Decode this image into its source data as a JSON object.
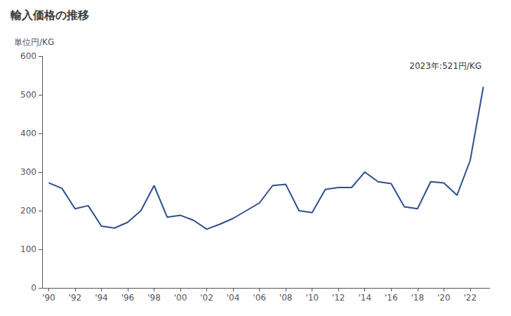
{
  "chart_data": {
    "type": "line",
    "title": "輸入価格の推移",
    "ylabel": "単位円/KG",
    "annotation": "2023年:521円/KG",
    "color": "#2e4e8f",
    "x": [
      1990,
      1991,
      1992,
      1993,
      1994,
      1995,
      1996,
      1997,
      1998,
      1999,
      2000,
      2001,
      2002,
      2003,
      2004,
      2005,
      2006,
      2007,
      2008,
      2009,
      2010,
      2011,
      2012,
      2013,
      2014,
      2015,
      2016,
      2017,
      2018,
      2019,
      2020,
      2021,
      2022,
      2023
    ],
    "values": [
      272,
      258,
      205,
      213,
      160,
      155,
      170,
      200,
      265,
      183,
      188,
      175,
      152,
      165,
      180,
      200,
      220,
      265,
      268,
      200,
      195,
      255,
      260,
      260,
      300,
      275,
      270,
      210,
      205,
      275,
      272,
      240,
      330,
      521
    ],
    "xlim": [
      1989.5,
      2023.5
    ],
    "xticks": [
      {
        "value": 1990,
        "label": "'90"
      },
      {
        "value": 1992,
        "label": "'92"
      },
      {
        "value": 1994,
        "label": "'94"
      },
      {
        "value": 1996,
        "label": "'96"
      },
      {
        "value": 1998,
        "label": "'98"
      },
      {
        "value": 2000,
        "label": "'00"
      },
      {
        "value": 2002,
        "label": "'02"
      },
      {
        "value": 2004,
        "label": "'04"
      },
      {
        "value": 2006,
        "label": "'06"
      },
      {
        "value": 2008,
        "label": "'08"
      },
      {
        "value": 2010,
        "label": "'10"
      },
      {
        "value": 2012,
        "label": "'12"
      },
      {
        "value": 2014,
        "label": "'14"
      },
      {
        "value": 2016,
        "label": "'16"
      },
      {
        "value": 2018,
        "label": "'18"
      },
      {
        "value": 2020,
        "label": "'20"
      },
      {
        "value": 2022,
        "label": "'22"
      }
    ],
    "ylim": [
      0,
      600
    ],
    "yticks": [
      0,
      100,
      200,
      300,
      400,
      500,
      600
    ],
    "grid": false
  }
}
